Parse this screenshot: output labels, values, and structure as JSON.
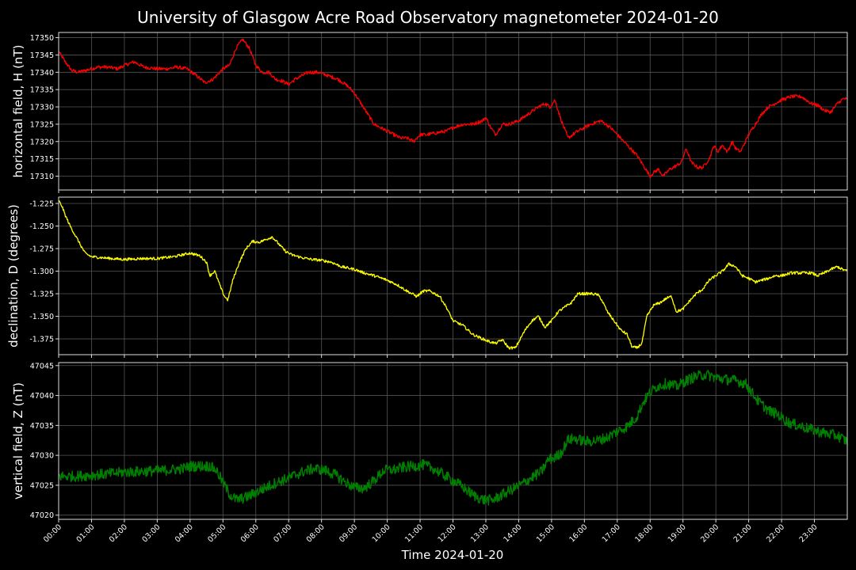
{
  "chart_data": {
    "type": "line",
    "title": "University of Glasgow Acre Road Observatory magnetometer 2024-01-20",
    "xlabel": "Time 2024-01-20",
    "x_ticks": [
      "00:00",
      "01:00",
      "02:00",
      "03:00",
      "04:00",
      "05:00",
      "06:00",
      "07:00",
      "08:00",
      "09:00",
      "10:00",
      "11:00",
      "12:00",
      "13:00",
      "14:00",
      "15:00",
      "16:00",
      "17:00",
      "18:00",
      "19:00",
      "20:00",
      "21:00",
      "22:00",
      "23:00"
    ],
    "x_range_hours": [
      0,
      24
    ],
    "grid": true,
    "background": "#000000",
    "panels": [
      {
        "ylabel": "horizontal field, H (nT)",
        "color": "#ff0000",
        "ylim": [
          17306,
          17351.5
        ],
        "y_ticks": [
          "17310",
          "17315",
          "17320",
          "17325",
          "17330",
          "17335",
          "17340",
          "17345",
          "17350"
        ],
        "y_tick_values": [
          17310,
          17315,
          17320,
          17325,
          17330,
          17335,
          17340,
          17345,
          17350
        ],
        "noise": 0.5,
        "series": {
          "x": [
            0,
            0.2,
            0.4,
            0.6,
            0.8,
            1.0,
            1.2,
            1.5,
            1.8,
            2.0,
            2.3,
            2.6,
            3.0,
            3.3,
            3.6,
            3.9,
            4.2,
            4.45,
            4.7,
            5.0,
            5.2,
            5.4,
            5.6,
            5.8,
            6.0,
            6.2,
            6.4,
            6.6,
            6.8,
            7.0,
            7.2,
            7.4,
            7.6,
            7.9,
            8.2,
            8.5,
            8.8,
            9.0,
            9.2,
            9.4,
            9.6,
            9.8,
            10.0,
            10.2,
            10.4,
            10.6,
            10.8,
            11.0,
            11.2,
            11.5,
            11.8,
            12.0,
            12.3,
            12.6,
            12.9,
            13.0,
            13.15,
            13.3,
            13.5,
            13.7,
            14.0,
            14.3,
            14.6,
            14.8,
            14.95,
            15.1,
            15.3,
            15.5,
            15.8,
            16.0,
            16.2,
            16.5,
            16.8,
            17.1,
            17.4,
            17.6,
            17.8,
            18.0,
            18.1,
            18.25,
            18.4,
            18.6,
            18.8,
            18.95,
            19.1,
            19.25,
            19.45,
            19.6,
            19.8,
            19.95,
            20.05,
            20.2,
            20.35,
            20.5,
            20.6,
            20.75,
            20.85,
            21.0,
            21.2,
            21.4,
            21.6,
            21.8,
            22.0,
            22.3,
            22.6,
            22.9,
            23.1,
            23.3,
            23.5,
            23.7,
            23.9,
            24.0
          ],
          "y": [
            17346,
            17343,
            17340.5,
            17340,
            17340.5,
            17341,
            17341.5,
            17341.5,
            17341,
            17342,
            17343,
            17341.5,
            17341,
            17341,
            17341.5,
            17341,
            17339,
            17337,
            17338,
            17341,
            17342,
            17347,
            17349.5,
            17347,
            17342,
            17340,
            17340,
            17338,
            17337.5,
            17336.5,
            17338,
            17339,
            17340,
            17340,
            17339,
            17338,
            17336,
            17334,
            17331,
            17328,
            17325,
            17324,
            17323,
            17322,
            17321,
            17321,
            17320,
            17322,
            17322,
            17322.5,
            17323,
            17324,
            17325,
            17325,
            17326,
            17327,
            17324,
            17322,
            17325,
            17325,
            17326,
            17328,
            17330,
            17331,
            17330,
            17332,
            17326,
            17321,
            17323,
            17324,
            17325,
            17326,
            17324,
            17321,
            17318,
            17316,
            17313,
            17310,
            17311,
            17312,
            17310,
            17312,
            17313,
            17314,
            17318,
            17314,
            17312.5,
            17312.5,
            17315,
            17319,
            17317,
            17319,
            17317,
            17320,
            17318,
            17317,
            17319,
            17322,
            17325,
            17328,
            17330,
            17331,
            17332,
            17333,
            17333,
            17331,
            17330.5,
            17329,
            17328.5,
            17331,
            17332.5,
            17332
          ]
        }
      },
      {
        "ylabel": "declination, D (degrees)",
        "color": "#ffff00",
        "ylim": [
          -1.3925,
          -1.218
        ],
        "y_ticks": [
          "-1.375",
          "-1.350",
          "-1.325",
          "-1.300",
          "-1.275",
          "-1.250",
          "-1.225"
        ],
        "y_tick_values": [
          -1.375,
          -1.35,
          -1.325,
          -1.3,
          -1.275,
          -1.25,
          -1.225
        ],
        "noise": 0.0015,
        "series": {
          "x": [
            0,
            0.1,
            0.2,
            0.35,
            0.5,
            0.65,
            0.8,
            1.0,
            1.3,
            1.6,
            2.0,
            2.5,
            3.0,
            3.5,
            4.0,
            4.3,
            4.5,
            4.6,
            4.75,
            4.85,
            4.95,
            5.05,
            5.15,
            5.3,
            5.5,
            5.7,
            5.9,
            6.1,
            6.3,
            6.5,
            6.7,
            6.9,
            7.1,
            7.4,
            7.7,
            8.0,
            8.3,
            8.6,
            9.0,
            9.3,
            9.6,
            10.0,
            10.3,
            10.6,
            10.9,
            11.1,
            11.3,
            11.6,
            11.8,
            12.0,
            12.3,
            12.6,
            12.9,
            13.1,
            13.3,
            13.5,
            13.7,
            13.9,
            14.05,
            14.2,
            14.4,
            14.6,
            14.8,
            15.0,
            15.2,
            15.4,
            15.6,
            15.8,
            16.0,
            16.2,
            16.4,
            16.5,
            16.7,
            16.9,
            17.1,
            17.3,
            17.45,
            17.6,
            17.75,
            17.9,
            18.1,
            18.3,
            18.5,
            18.65,
            18.8,
            19.0,
            19.2,
            19.4,
            19.6,
            19.8,
            20.0,
            20.2,
            20.4,
            20.6,
            20.8,
            21.0,
            21.2,
            21.4,
            21.6,
            21.8,
            22.0,
            22.3,
            22.6,
            22.9,
            23.1,
            23.3,
            23.5,
            23.7,
            23.85,
            24.0
          ],
          "y": [
            -1.222,
            -1.228,
            -1.238,
            -1.25,
            -1.26,
            -1.27,
            -1.28,
            -1.284,
            -1.285,
            -1.286,
            -1.287,
            -1.286,
            -1.286,
            -1.284,
            -1.28,
            -1.283,
            -1.29,
            -1.305,
            -1.3,
            -1.31,
            -1.32,
            -1.328,
            -1.332,
            -1.31,
            -1.29,
            -1.275,
            -1.267,
            -1.268,
            -1.265,
            -1.262,
            -1.27,
            -1.278,
            -1.282,
            -1.285,
            -1.287,
            -1.288,
            -1.29,
            -1.295,
            -1.298,
            -1.302,
            -1.305,
            -1.31,
            -1.315,
            -1.322,
            -1.328,
            -1.322,
            -1.322,
            -1.328,
            -1.34,
            -1.355,
            -1.36,
            -1.37,
            -1.375,
            -1.378,
            -1.38,
            -1.376,
            -1.385,
            -1.385,
            -1.375,
            -1.365,
            -1.355,
            -1.35,
            -1.362,
            -1.355,
            -1.345,
            -1.34,
            -1.335,
            -1.325,
            -1.325,
            -1.325,
            -1.326,
            -1.33,
            -1.345,
            -1.355,
            -1.365,
            -1.37,
            -1.384,
            -1.385,
            -1.38,
            -1.35,
            -1.338,
            -1.335,
            -1.33,
            -1.328,
            -1.345,
            -1.342,
            -1.333,
            -1.325,
            -1.32,
            -1.31,
            -1.305,
            -1.3,
            -1.292,
            -1.295,
            -1.305,
            -1.308,
            -1.312,
            -1.31,
            -1.308,
            -1.305,
            -1.305,
            -1.302,
            -1.302,
            -1.302,
            -1.305,
            -1.302,
            -1.298,
            -1.295,
            -1.298,
            -1.3
          ]
        }
      },
      {
        "ylabel": "vertical field, Z (nT)",
        "color": "#008000",
        "ylim": [
          47019.3,
          47045.5
        ],
        "y_ticks": [
          "47020",
          "47025",
          "47030",
          "47035",
          "47040",
          "47045"
        ],
        "y_tick_values": [
          47020,
          47025,
          47030,
          47035,
          47040,
          47045
        ],
        "noise": 0.9,
        "series": {
          "x": [
            0,
            0.5,
            1.0,
            1.5,
            2.0,
            2.5,
            3.0,
            3.5,
            3.8,
            4.0,
            4.3,
            4.6,
            4.8,
            5.0,
            5.2,
            5.4,
            5.6,
            5.8,
            6.0,
            6.3,
            6.6,
            6.9,
            7.2,
            7.5,
            7.8,
            8.1,
            8.4,
            8.7,
            9.0,
            9.3,
            9.6,
            9.9,
            10.2,
            10.5,
            10.8,
            11.1,
            11.4,
            11.7,
            12.0,
            12.3,
            12.6,
            12.9,
            13.2,
            13.5,
            13.8,
            14.1,
            14.4,
            14.7,
            14.9,
            15.1,
            15.3,
            15.5,
            15.7,
            15.9,
            16.1,
            16.4,
            16.7,
            17.0,
            17.3,
            17.6,
            17.8,
            18.0,
            18.2,
            18.5,
            18.8,
            19.1,
            19.4,
            19.7,
            20.0,
            20.3,
            20.6,
            20.9,
            21.1,
            21.3,
            21.6,
            21.9,
            22.2,
            22.5,
            22.8,
            23.1,
            23.4,
            23.7,
            24.0
          ],
          "y": [
            47026.5,
            47026.5,
            47026.7,
            47026.9,
            47027.2,
            47027.3,
            47027.4,
            47027.6,
            47027.8,
            47028.2,
            47028.2,
            47028.2,
            47027.5,
            47025.5,
            47023.5,
            47022.6,
            47022.8,
            47023.2,
            47023.8,
            47024.6,
            47025.4,
            47026.0,
            47026.7,
            47027.4,
            47027.8,
            47027.5,
            47026.8,
            47025.6,
            47024.6,
            47024.5,
            47025.8,
            47027.5,
            47027.6,
            47028.0,
            47028.2,
            47028.4,
            47027.8,
            47026.8,
            47025.8,
            47024.7,
            47023.4,
            47022.6,
            47022.5,
            47023.4,
            47024.3,
            47025.2,
            47026.3,
            47027.3,
            47029.3,
            47029.6,
            47030.5,
            47032.6,
            47032.8,
            47032.5,
            47032.3,
            47032.5,
            47033.0,
            47034.0,
            47034.8,
            47036.5,
            47039.0,
            47040.5,
            47041.5,
            47042.0,
            47041.5,
            47042.5,
            47043.2,
            47043.5,
            47043.0,
            47042.7,
            47042.5,
            47042.0,
            47040.5,
            47039.0,
            47037.5,
            47036.8,
            47035.5,
            47035.0,
            47034.5,
            47034.0,
            47033.6,
            47033.3,
            47032.3
          ]
        }
      }
    ]
  }
}
